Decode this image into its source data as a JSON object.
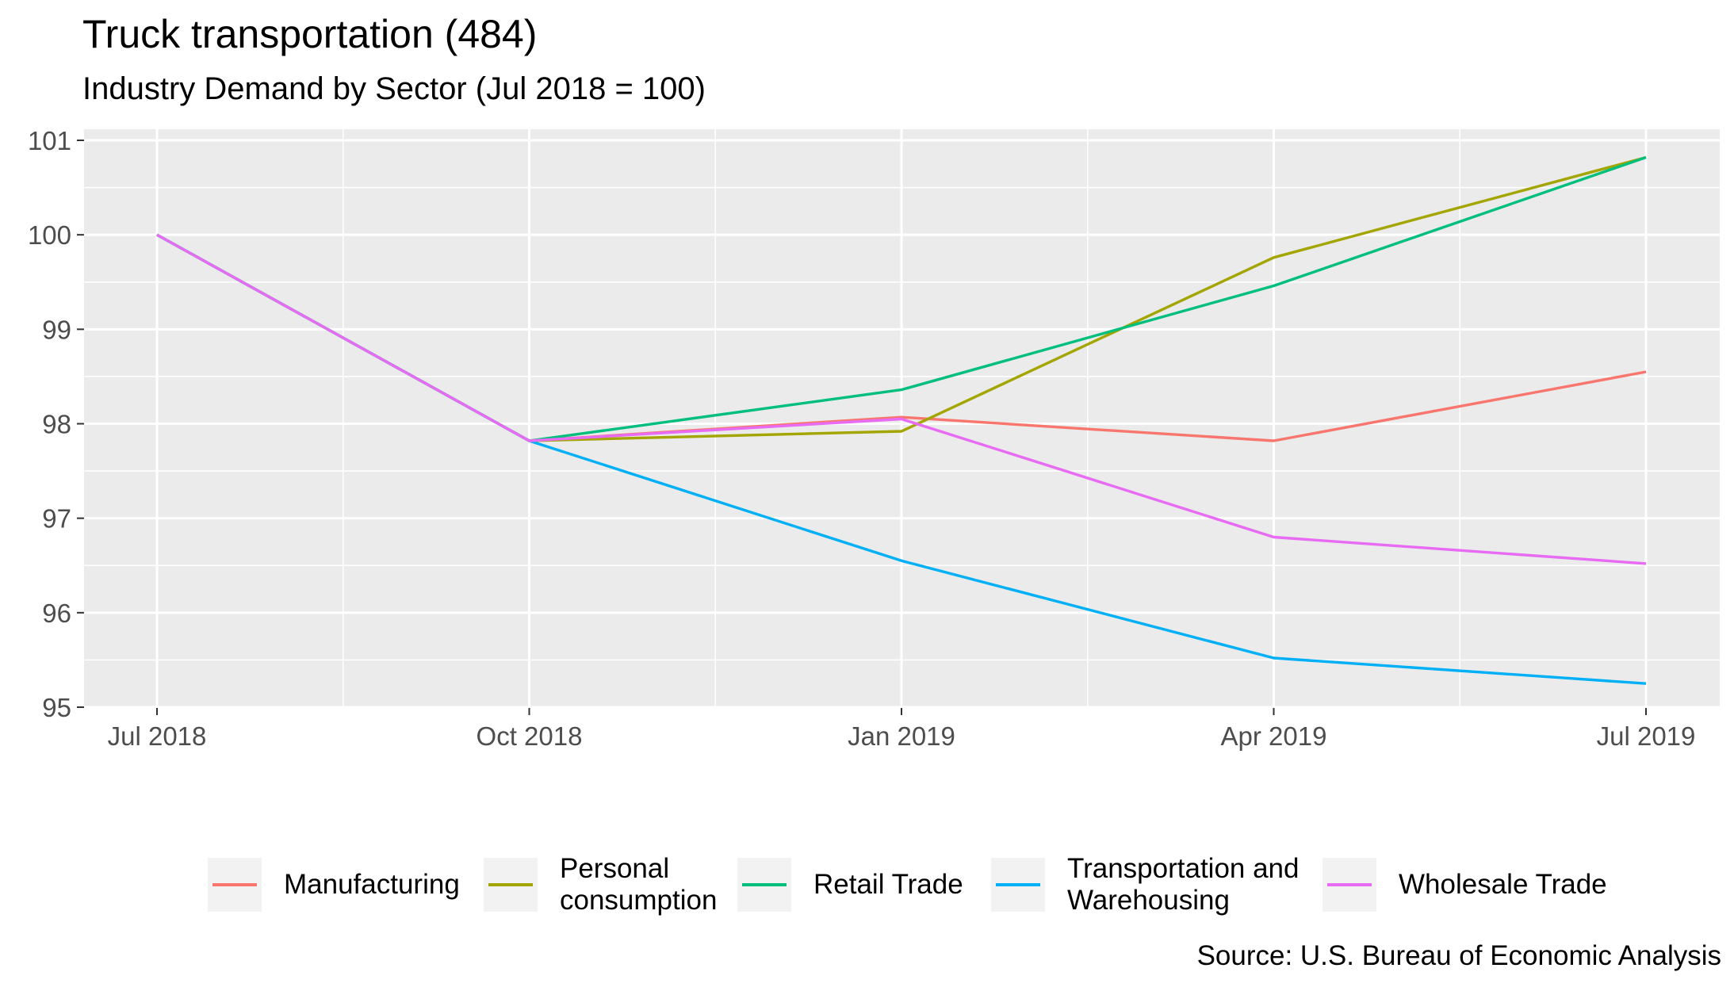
{
  "title": "Truck transportation (484)",
  "subtitle": "Industry Demand by Sector (Jul 2018 = 100)",
  "caption": "Source: U.S. Bureau of Economic Analysis",
  "chart_data": {
    "type": "line",
    "title": "Truck transportation (484)",
    "subtitle": "Industry Demand by Sector (Jul 2018 = 100)",
    "xlabel": "",
    "ylabel": "",
    "x": [
      "Jul 2018",
      "Oct 2018",
      "Jan 2019",
      "Apr 2019",
      "Jul 2019"
    ],
    "ylim": [
      95,
      101
    ],
    "y_ticks": [
      95,
      96,
      97,
      98,
      99,
      100,
      101
    ],
    "grid": true,
    "legend_position": "bottom",
    "series": [
      {
        "name": "Manufacturing",
        "color": "#F8766D",
        "values": [
          100,
          97.82,
          98.07,
          97.82,
          98.55
        ]
      },
      {
        "name": "Personal\nconsumption",
        "color": "#A3A500",
        "values": [
          100,
          97.82,
          97.92,
          99.76,
          100.82
        ]
      },
      {
        "name": "Retail Trade",
        "color": "#00BF7D",
        "values": [
          100,
          97.82,
          98.36,
          99.46,
          100.82
        ]
      },
      {
        "name": "Transportation and\nWarehousing",
        "color": "#00B0F6",
        "values": [
          100,
          97.82,
          96.55,
          95.52,
          95.25
        ]
      },
      {
        "name": "Wholesale Trade",
        "color": "#E76BF3",
        "values": [
          100,
          97.82,
          98.05,
          96.8,
          96.52
        ]
      }
    ]
  }
}
